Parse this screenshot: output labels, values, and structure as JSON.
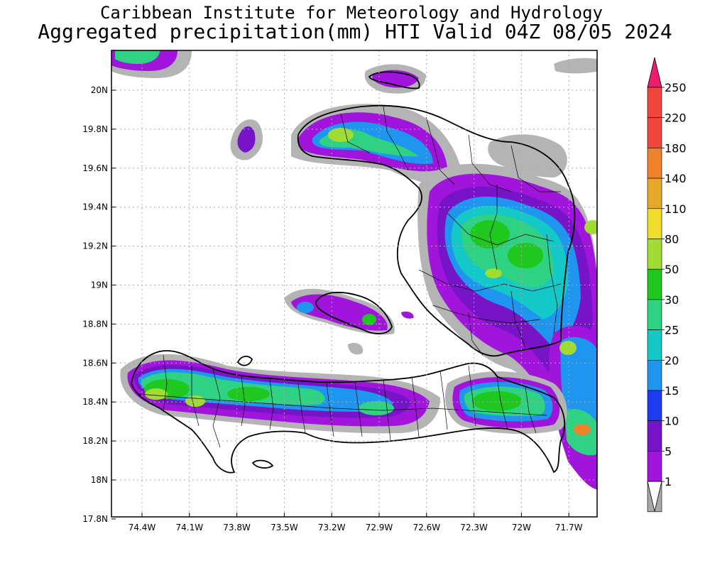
{
  "header": {
    "institute": "Caribbean Institute for Meteorology and Hydrology",
    "product": "Aggregated precipitation(mm) HTI Valid 04Z 08/05 2024"
  },
  "map": {
    "lat_ticks": [
      "20N",
      "19.8N",
      "19.6N",
      "19.4N",
      "19.2N",
      "19N",
      "18.8N",
      "18.6N",
      "18.4N",
      "18.2N",
      "18N",
      "17.8N"
    ],
    "lon_ticks": [
      "74.4W",
      "74.1W",
      "73.8W",
      "73.5W",
      "73.2W",
      "72.9W",
      "72.6W",
      "72.3W",
      "72W",
      "71.7W"
    ]
  },
  "colorbar": {
    "labels": [
      "250",
      "220",
      "180",
      "140",
      "110",
      "80",
      "50",
      "30",
      "25",
      "20",
      "15",
      "10",
      "5",
      "1"
    ],
    "colors": [
      "#ee1c6c",
      "#f0463c",
      "#f0822c",
      "#e6a82a",
      "#f0dc2a",
      "#a0dc32",
      "#1ec81e",
      "#2ed282",
      "#14c8c8",
      "#1e96f0",
      "#1e3cf0",
      "#7814c8",
      "#a014dc",
      "#a8a8a8"
    ]
  },
  "legend_colors": {
    "grey": "#b4b4b4",
    "purple": "#a014dc",
    "violet": "#7814c8",
    "blue": "#1e96f0",
    "cyan": "#14c8c8",
    "teal": "#2ed282",
    "green": "#1ec81e",
    "lime": "#a0dc32",
    "yellow": "#f0dc2a",
    "orange": "#f0822c"
  }
}
